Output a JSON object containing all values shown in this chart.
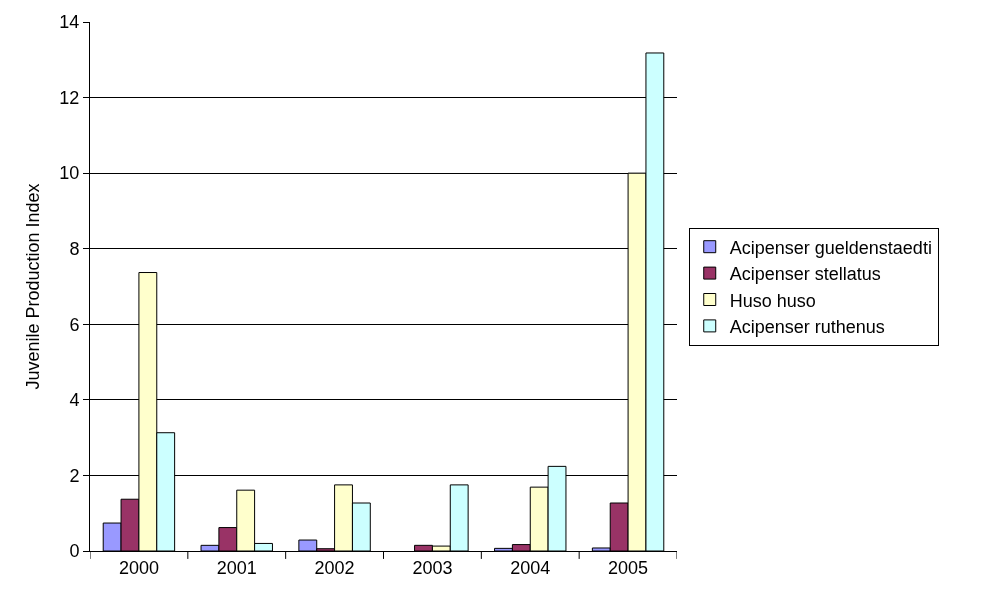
{
  "chart_data": {
    "type": "bar",
    "ylabel": "Juvenile Production Index",
    "categories": [
      "2000",
      "2001",
      "2002",
      "2003",
      "2004",
      "2005"
    ],
    "series": [
      {
        "name": "Acipenser gueldenstaedti",
        "color": "#9999ff",
        "values": [
          0.74,
          0.15,
          0.29,
          null,
          0.07,
          0.08
        ]
      },
      {
        "name": "Acipenser stellatus",
        "color": "#993366",
        "values": [
          1.37,
          0.62,
          0.06,
          0.15,
          0.17,
          1.27
        ]
      },
      {
        "name": "Huso huso",
        "color": "#ffffcc",
        "values": [
          7.37,
          1.61,
          1.75,
          0.13,
          1.69,
          10.0
        ]
      },
      {
        "name": "Acipenser ruthenus",
        "color": "#ccffff",
        "values": [
          3.13,
          0.2,
          1.27,
          1.75,
          2.24,
          13.18
        ]
      }
    ],
    "ylim": [
      0,
      14
    ],
    "yticks": [
      0,
      2,
      4,
      6,
      8,
      10,
      12,
      14
    ],
    "grid": "y",
    "legend": "right"
  }
}
